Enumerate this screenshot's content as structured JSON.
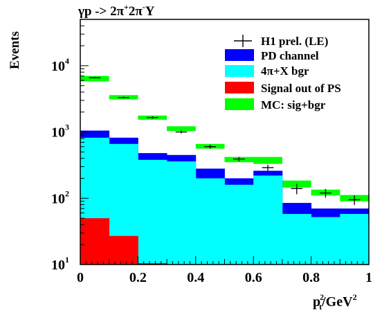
{
  "chart_data": {
    "type": "histogram",
    "title": "γp -> 2π⁺2π⁻Y",
    "title_parts": {
      "base": "γp -> 2π",
      "sup1": "+",
      "mid": "2π",
      "sup2": "-",
      "tail": "Y"
    },
    "ylabel": "Events",
    "xlabel": "p_t^2/GeV^2",
    "xlabel_parts": {
      "p": "p",
      "psup": "2",
      "psub": "t",
      "mid": "/GeV",
      "gsup": "2"
    },
    "x_range": [
      0,
      1
    ],
    "y_range": [
      10,
      50000
    ],
    "y_scale": "log",
    "x_ticks": [
      {
        "v": 0,
        "label": "0"
      },
      {
        "v": 0.2,
        "label": "0.2"
      },
      {
        "v": 0.4,
        "label": "0.4"
      },
      {
        "v": 0.6,
        "label": "0.6"
      },
      {
        "v": 0.8,
        "label": "0.8"
      },
      {
        "v": 1,
        "label": "1"
      }
    ],
    "y_ticks": [
      {
        "v": 10,
        "base": "10",
        "exp": "1"
      },
      {
        "v": 100,
        "base": "10",
        "exp": "2"
      },
      {
        "v": 1000,
        "base": "10",
        "exp": "3"
      },
      {
        "v": 10000,
        "base": "10",
        "exp": "4"
      }
    ],
    "bins": [
      0,
      0.1,
      0.2,
      0.3,
      0.4,
      0.5,
      0.6,
      0.7,
      0.8,
      0.9,
      1.0
    ],
    "legend_position": "top-right",
    "legend": [
      {
        "label": "H1 prel. (LE)",
        "kind": "marker"
      },
      {
        "label": "PD channel",
        "kind": "box",
        "color": "#0000ff"
      },
      {
        "label": "4π+X bgr",
        "kind": "box",
        "color": "#00ffff"
      },
      {
        "label": "Signal out of PS",
        "kind": "box",
        "color": "#ff0000"
      },
      {
        "label": "MC: sig+bgr",
        "kind": "box",
        "color": "#00ff00"
      }
    ],
    "series": [
      {
        "name": "MC: sig+bgr",
        "color": "#00ff00",
        "style": "band",
        "low": [
          5800,
          3100,
          1530,
          1030,
          560,
          350,
          330,
          145,
          110,
          90
        ],
        "high": [
          7000,
          3600,
          1770,
          1220,
          660,
          420,
          420,
          185,
          135,
          112
        ]
      },
      {
        "name": "PD channel",
        "color": "#0000ff",
        "values": [
          1050,
          820,
          480,
          450,
          280,
          200,
          260,
          85,
          70,
          70
        ]
      },
      {
        "name": "4π+X bgr",
        "color": "#00ffff",
        "values": [
          820,
          660,
          380,
          360,
          200,
          160,
          220,
          58,
          52,
          58
        ]
      },
      {
        "name": "Signal out of PS",
        "color": "#ff0000",
        "values": [
          50,
          27,
          10.5,
          0,
          0,
          0,
          0,
          0,
          0,
          0
        ]
      },
      {
        "name": "H1 prel. (LE)",
        "style": "points",
        "x": [
          0.05,
          0.15,
          0.25,
          0.35,
          0.45,
          0.55,
          0.65,
          0.75,
          0.85,
          0.95
        ],
        "y": [
          6600,
          3300,
          1650,
          1000,
          600,
          390,
          290,
          140,
          120,
          95
        ],
        "yerr": [
          150,
          100,
          70,
          50,
          40,
          30,
          30,
          25,
          18,
          16
        ]
      }
    ]
  }
}
